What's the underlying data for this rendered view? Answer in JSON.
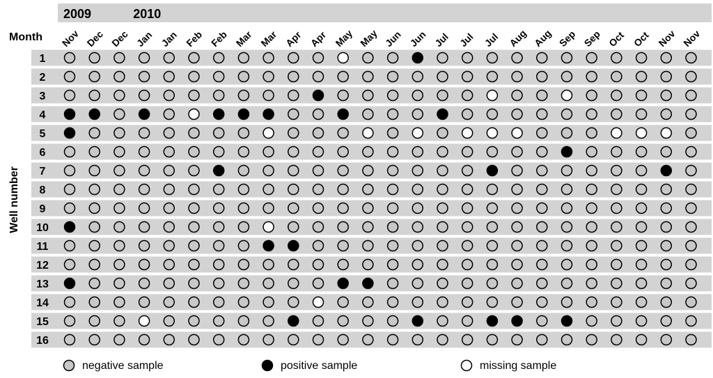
{
  "chart_data": {
    "type": "table",
    "years": [
      {
        "label": "2009",
        "start_col": 0,
        "end_col": 2
      },
      {
        "label": "2010",
        "start_col": 3,
        "end_col": 25
      }
    ],
    "month_header_label": "Month",
    "ylabel": "Well number",
    "columns": [
      "Nov",
      "Dec",
      "Dec",
      "Jan",
      "Jan",
      "Feb",
      "Feb",
      "Mar",
      "Mar",
      "Apr",
      "Apr",
      "May",
      "May",
      "Jun",
      "Jun",
      "Jul",
      "Jul",
      "Jul",
      "Aug",
      "Aug",
      "Sep",
      "Sep",
      "Oct",
      "Oct",
      "Nov",
      "Nov"
    ],
    "rows": [
      "1",
      "2",
      "3",
      "4",
      "5",
      "6",
      "7",
      "8",
      "9",
      "10",
      "11",
      "12",
      "13",
      "14",
      "15",
      "16"
    ],
    "status_codes": {
      "N": "negative sample",
      "P": "positive sample",
      "M": "missing sample"
    },
    "colors": {
      "negative": "#c8c8c8",
      "positive": "#000000",
      "missing": "#ffffff",
      "band": "#d3d3d3",
      "stroke": "#000000"
    },
    "values": [
      "NNNNNNNNNNNMNNPNNNNNNNNNNN",
      "NNNNNNNNNNNNNNNNNNNNNNNNNN",
      "NNNNNNNNNNPNNNNNNMNNMNNNNN",
      "PPNPNMPPPNNPNNNPNNNNNNNNNN",
      "PNNNNNNNMNNNMNMNMMMNNNMMMN",
      "NNNNNNNNNNNNNNNNNNNNPNNNNN",
      "NNNNNNPNNNNNNNNNNPNNNNNNPN",
      "NNNNNNNNNNNNNNNNNNNNNNNNNN",
      "NNNNNNNNNNNNNNNNNNNNNNNNNN",
      "PNNNNNNNMNNNNNNNNNNNNNNNNN",
      "NNNNNNNNPPNNNNNNNNNNNNNNNN",
      "NNNNNNNNNNNNNNNNNNNNNNNNNN",
      "PNNNNNNNNNNPPNNNNNNNNNNNNN",
      "NNNNNNNNNNMNNNNNNNNNNNNNNN",
      "NNNMNNNNNPNNNNPNNPPNPNNNNN",
      "NNNNNNNNNNNNNNNNNNNNNNNNNN"
    ],
    "legend": [
      {
        "status": "N",
        "label": "negative sample"
      },
      {
        "status": "P",
        "label": "positive sample"
      },
      {
        "status": "M",
        "label": "missing sample"
      }
    ]
  }
}
